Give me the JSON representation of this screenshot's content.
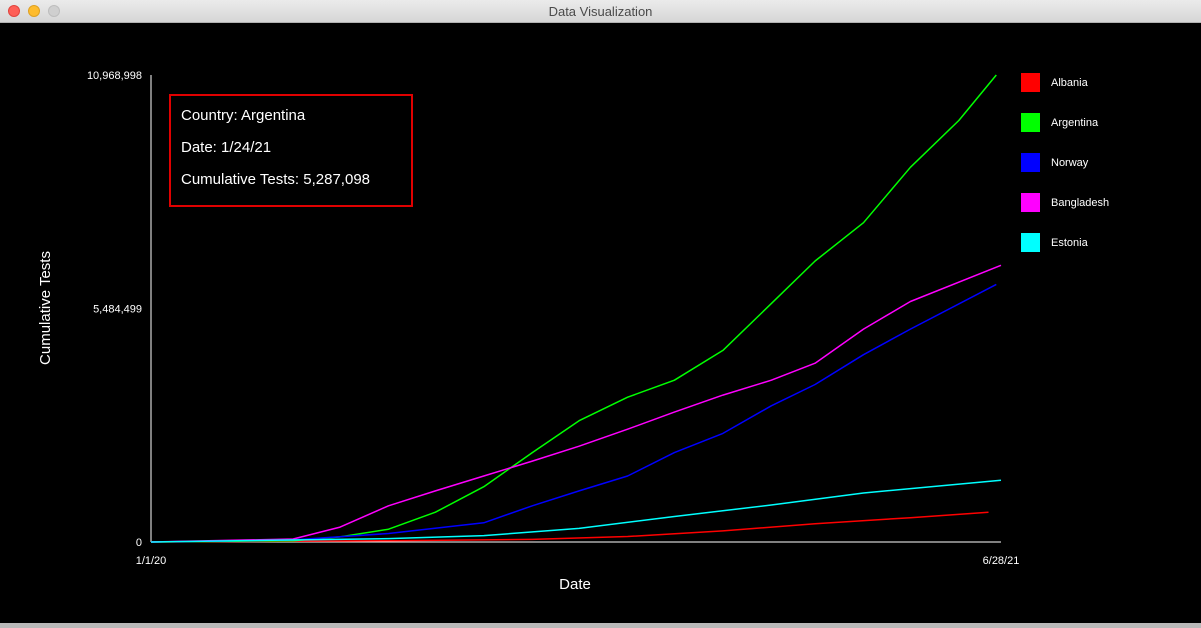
{
  "window": {
    "title": "Data Visualization"
  },
  "tooltip": {
    "country_label": "Country: Argentina",
    "date_label": "Date: 1/24/21",
    "tests_label": "Cumulative Tests: 5,287,098"
  },
  "chart_data": {
    "type": "line",
    "title": "",
    "xlabel": "Date",
    "ylabel": "Cumulative Tests",
    "x_tick_labels": [
      "1/1/20",
      "6/28/21"
    ],
    "y_tick_labels": [
      "0",
      "5,484,499",
      "10,968,998"
    ],
    "x_range": [
      "2020-01-01",
      "2021-06-28"
    ],
    "ylim": [
      0,
      10968998
    ],
    "grid": false,
    "legend": "right",
    "series": [
      {
        "name": "Albania",
        "color": "#ff0000",
        "x": [
          "2020-01-01",
          "2020-06-01",
          "2020-09-01",
          "2020-11-01",
          "2021-01-01",
          "2021-03-01",
          "2021-05-01",
          "2021-06-20"
        ],
        "y": [
          0,
          30000,
          60000,
          130000,
          260000,
          430000,
          570000,
          700000
        ]
      },
      {
        "name": "Argentina",
        "color": "#00ff00",
        "x": [
          "2020-01-01",
          "2020-04-01",
          "2020-05-01",
          "2020-06-01",
          "2020-07-01",
          "2020-08-01",
          "2020-09-01",
          "2020-10-01",
          "2020-11-01",
          "2020-12-01",
          "2021-01-01",
          "2021-02-01",
          "2021-03-01",
          "2021-04-01",
          "2021-05-01",
          "2021-06-01",
          "2021-06-25"
        ],
        "y": [
          0,
          30000,
          120000,
          300000,
          700000,
          1300000,
          2100000,
          2850000,
          3400000,
          3800000,
          4500000,
          5600000,
          6600000,
          7500000,
          8800000,
          9900000,
          10968998
        ]
      },
      {
        "name": "Norway",
        "color": "#0000ff",
        "x": [
          "2020-01-01",
          "2020-04-01",
          "2020-06-01",
          "2020-08-01",
          "2020-09-01",
          "2020-10-01",
          "2020-11-01",
          "2020-12-01",
          "2021-01-01",
          "2021-02-01",
          "2021-03-01",
          "2021-04-01",
          "2021-05-01",
          "2021-06-25"
        ],
        "y": [
          0,
          50000,
          200000,
          450000,
          850000,
          1200000,
          1550000,
          2100000,
          2550000,
          3200000,
          3700000,
          4400000,
          5000000,
          6050000
        ]
      },
      {
        "name": "Bangladesh",
        "color": "#ff00ff",
        "x": [
          "2020-01-01",
          "2020-04-01",
          "2020-05-01",
          "2020-06-01",
          "2020-07-01",
          "2020-08-01",
          "2020-09-01",
          "2020-10-01",
          "2020-11-01",
          "2020-12-01",
          "2021-01-01",
          "2021-02-01",
          "2021-03-01",
          "2021-04-01",
          "2021-05-01",
          "2021-06-28"
        ],
        "y": [
          0,
          70000,
          350000,
          850000,
          1200000,
          1550000,
          1900000,
          2250000,
          2650000,
          3050000,
          3450000,
          3800000,
          4200000,
          5000000,
          5650000,
          6500000
        ]
      },
      {
        "name": "Estonia",
        "color": "#00ffff",
        "x": [
          "2020-01-01",
          "2020-06-01",
          "2020-08-01",
          "2020-10-01",
          "2020-12-01",
          "2021-02-01",
          "2021-04-01",
          "2021-06-28"
        ],
        "y": [
          0,
          80000,
          150000,
          320000,
          600000,
          870000,
          1150000,
          1450000
        ]
      }
    ]
  }
}
